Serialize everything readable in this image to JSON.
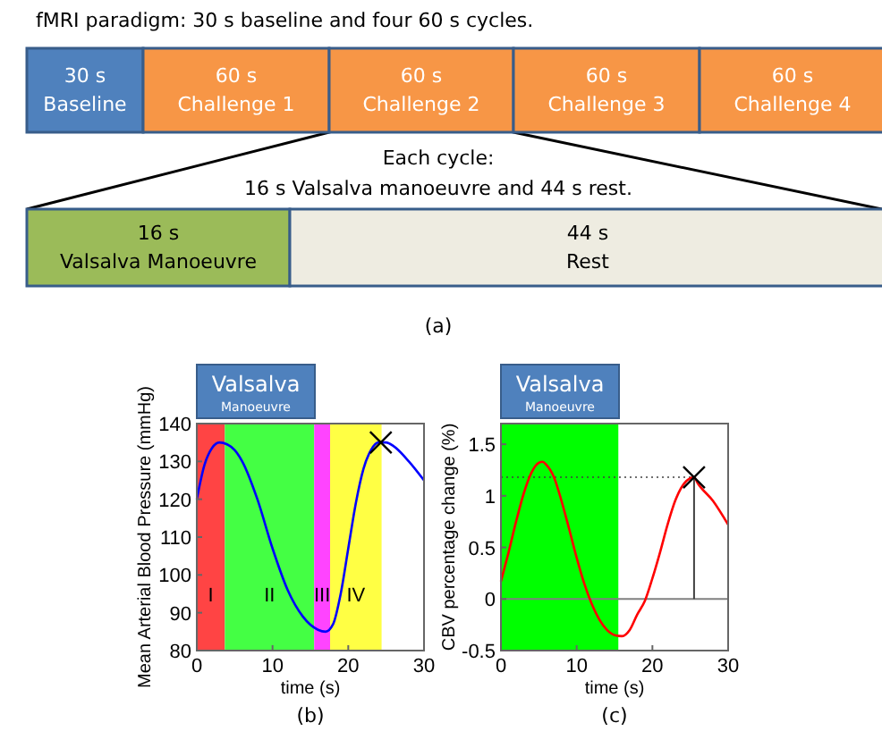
{
  "chart_data": [
    {
      "type": "other",
      "title": "fMRI paradigm: 30 s baseline and four 60 s cycles.",
      "categories": [
        "30 s\nBaseline",
        "60 s\nChallenge 1",
        "60 s\nChallenge 2",
        "60 s\nChallenge 3",
        "60 s\nChallenge 4"
      ],
      "colors": [
        "#4f81bd",
        "#f79646",
        "#f79646",
        "#f79646",
        "#f79646"
      ]
    },
    {
      "type": "other",
      "annotations": [
        "Each cycle:\n16 s Valsalva manoeuvre and 44 s rest.",
        "(a)"
      ],
      "categories": [
        "16 s\nValsalva Manoeuvre",
        "44 s\nRest"
      ],
      "colors": [
        "#9bbb59",
        "#eeece1"
      ]
    },
    {
      "type": "line",
      "xlabel": "time (s)",
      "ylabel": "Mean Arterial Blood Pressure (mmHg)",
      "annotations": [
        "Valsalva\nManoeuvre",
        "(b)"
      ],
      "xlim": [
        0,
        30
      ],
      "xticks": [
        0,
        10,
        20,
        30
      ],
      "ylim": [
        80,
        140
      ],
      "yticks": [
        80,
        90,
        100,
        110,
        120,
        130,
        140
      ],
      "bands": [
        {
          "axis": "x",
          "from": 0,
          "to": 3.7,
          "label": "I",
          "color": "#ff4444"
        },
        {
          "axis": "x",
          "from": 3.7,
          "to": 15.5,
          "label": "II",
          "color": "#44ff44"
        },
        {
          "axis": "x",
          "from": 15.5,
          "to": 17.6,
          "label": "III",
          "color": "#ff44ff"
        },
        {
          "axis": "x",
          "from": 17.6,
          "to": 24.4,
          "label": "IV",
          "color": "#ffff44"
        }
      ],
      "series": [
        {
          "color": "#0000ff",
          "x": [
            0,
            1,
            2,
            3,
            4,
            5,
            6,
            8,
            10,
            12,
            14,
            16,
            17,
            18,
            19,
            20,
            21,
            22,
            23,
            24,
            25,
            26,
            28,
            30
          ],
          "values": [
            120,
            129,
            133.5,
            135,
            134.5,
            133,
            130,
            120,
            107,
            96,
            89,
            85.5,
            85,
            87,
            95,
            107,
            119,
            128,
            133,
            135,
            135,
            134,
            130,
            125
          ]
        },
        {
          "type": "scatter",
          "marker": "cross",
          "color": "#000000",
          "x": [
            24.3
          ],
          "values": [
            135
          ]
        }
      ]
    },
    {
      "type": "line",
      "xlabel": "time (s)",
      "ylabel": "CBV percentage change (%)",
      "annotations": [
        "Valsalva\nManoeuvre",
        "(c)"
      ],
      "xlim": [
        0,
        30
      ],
      "xticks": [
        0,
        10,
        20,
        30
      ],
      "ylim": [
        -0.5,
        1.7
      ],
      "yticks": [
        -0.5,
        0,
        0.5,
        1,
        1.5
      ],
      "bands": [
        {
          "axis": "x",
          "from": 0,
          "to": 15.5,
          "color": "#00ff00"
        }
      ],
      "ref_lines": [
        {
          "axis": "y",
          "value": 0,
          "color": "#808080",
          "line_style": "solid"
        },
        {
          "axis": "y",
          "value": 1.18,
          "color": "#404040",
          "line_style": "dotted"
        },
        {
          "axis": "x",
          "value": 25.5,
          "color": "#404040",
          "line_style": "solid"
        }
      ],
      "series": [
        {
          "color": "#ff0000",
          "x": [
            0,
            1,
            2,
            3,
            4,
            5,
            5.5,
            6,
            7,
            8,
            9,
            10,
            11,
            12,
            13,
            14,
            15,
            16,
            17,
            18,
            19,
            20,
            21,
            22,
            23,
            24,
            25,
            25.5,
            26,
            28,
            30
          ],
          "values": [
            0.17,
            0.45,
            0.75,
            1.02,
            1.22,
            1.32,
            1.33,
            1.3,
            1.18,
            0.95,
            0.68,
            0.4,
            0.15,
            -0.05,
            -0.2,
            -0.3,
            -0.35,
            -0.36,
            -0.3,
            -0.15,
            -0.02,
            0.2,
            0.45,
            0.72,
            0.95,
            1.1,
            1.17,
            1.18,
            1.12,
            0.95,
            0.72
          ]
        },
        {
          "type": "scatter",
          "marker": "cross",
          "color": "#000000",
          "x": [
            25.5
          ],
          "values": [
            1.18
          ]
        }
      ]
    }
  ]
}
